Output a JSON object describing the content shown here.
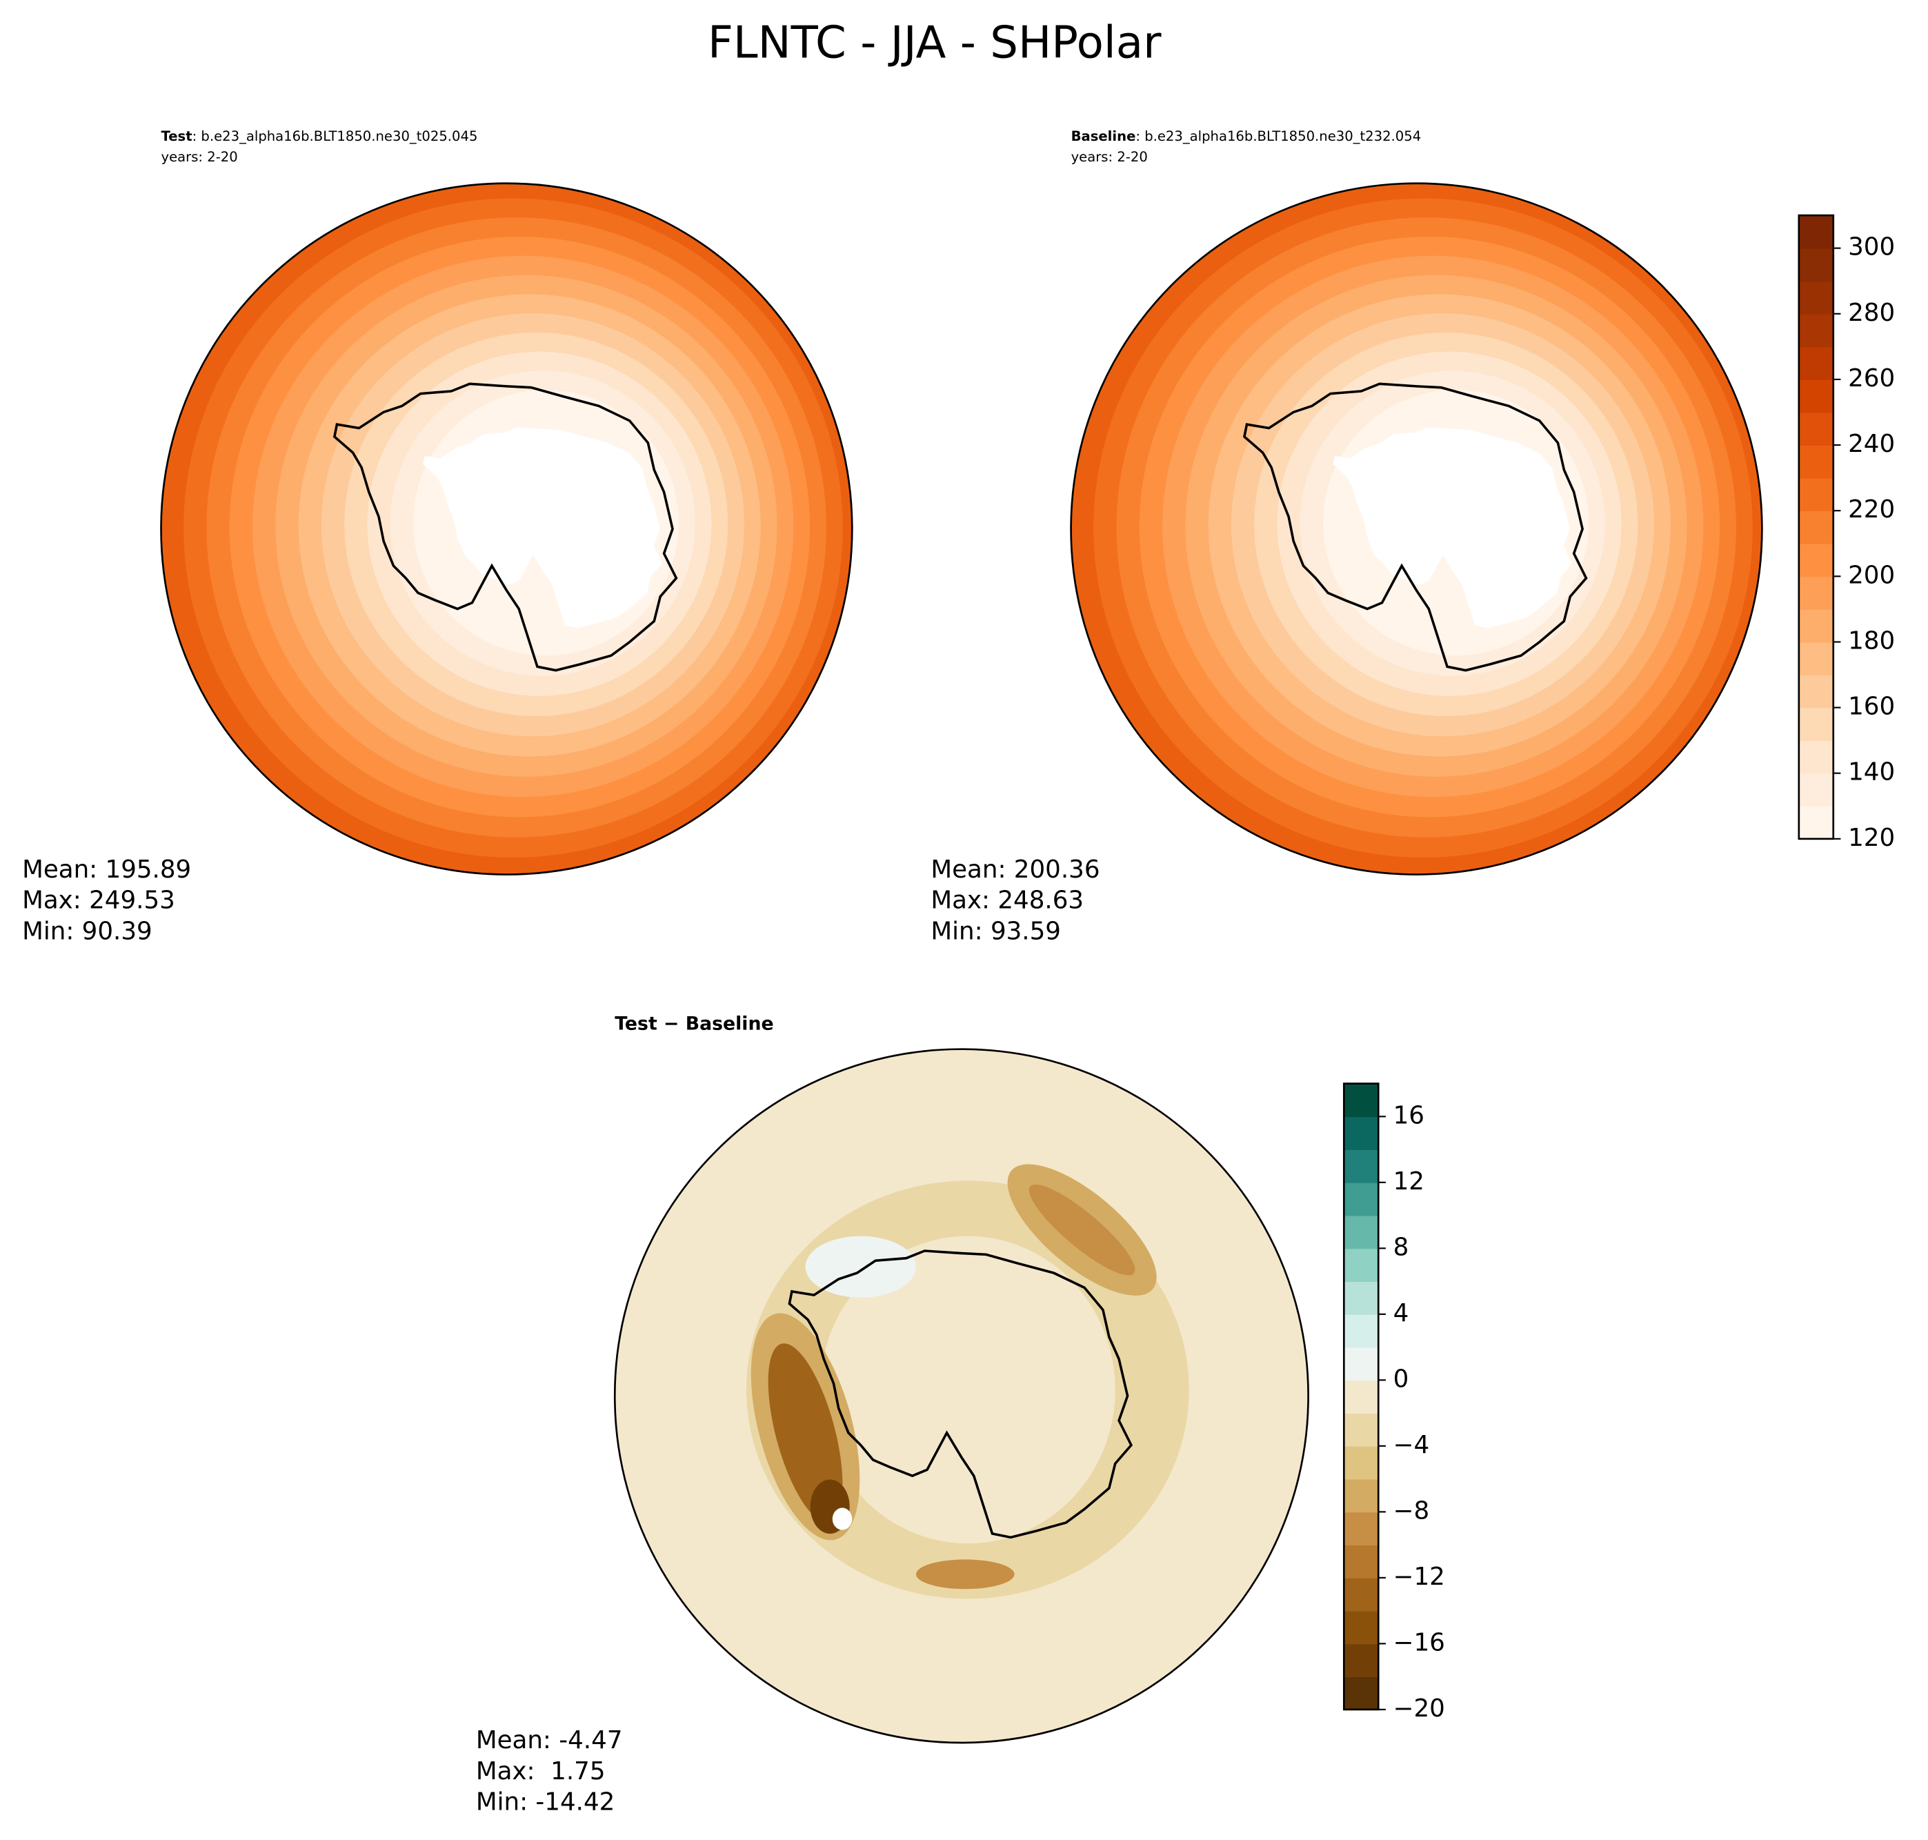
{
  "chart_data": [
    {
      "type": "colorbar-map",
      "title": "FLNTC - JJA - SHPolar",
      "panels": [
        {
          "label_bold": "Test",
          "label": ": b.e23_alpha16b.BLT1850.ne30_t025.045",
          "years": "years: 2-20",
          "stats": [
            "Mean: 195.89",
            "Max: 249.53",
            "Min: 90.39"
          ]
        },
        {
          "label_bold": "Baseline",
          "label": ": b.e23_alpha16b.BLT1850.ne30_t232.054",
          "years": "years: 2-20",
          "stats": [
            "Mean: 200.36",
            "Max: 248.63",
            "Min: 93.59"
          ]
        }
      ],
      "ylim": [
        120,
        310
      ],
      "yticks": [
        120,
        140,
        160,
        180,
        200,
        220,
        240,
        260,
        280,
        300
      ],
      "colors": [
        "#fff5eb",
        "#feeddc",
        "#fee6ce",
        "#fdd9b4",
        "#fdcb9b",
        "#fdbd83",
        "#fdae6b",
        "#fd9f56",
        "#fd9141",
        "#f8812f",
        "#f2701d",
        "#ea6010",
        "#e1510a",
        "#d34401",
        "#c03b02",
        "#a93603",
        "#993103",
        "#8a2c04",
        "#7f2704"
      ]
    },
    {
      "type": "colorbar-map",
      "title": "Test − Baseline",
      "stats": [
        "Mean: -4.47",
        "Max:  1.75",
        "Min: -14.42"
      ],
      "ylim": [
        -20,
        18
      ],
      "yticks": [
        {
          "value": -20,
          "label": "−20"
        },
        {
          "value": -16,
          "label": "−16"
        },
        {
          "value": -12,
          "label": "−12"
        },
        {
          "value": -8,
          "label": "−8"
        },
        {
          "value": -4,
          "label": "−4"
        },
        0,
        4,
        8,
        12,
        16
      ],
      "colors": [
        "#5a3306",
        "#724007",
        "#8a510a",
        "#a0631a",
        "#b5782c",
        "#c68f45",
        "#d3ab63",
        "#dfc381",
        "#ead7a6",
        "#f3e8cc",
        "#eef4f1",
        "#d6efea",
        "#b6e2da",
        "#8fd1c3",
        "#65b8aa",
        "#3f9d91",
        "#1f8179",
        "#0b6861",
        "#01503f"
      ]
    }
  ]
}
